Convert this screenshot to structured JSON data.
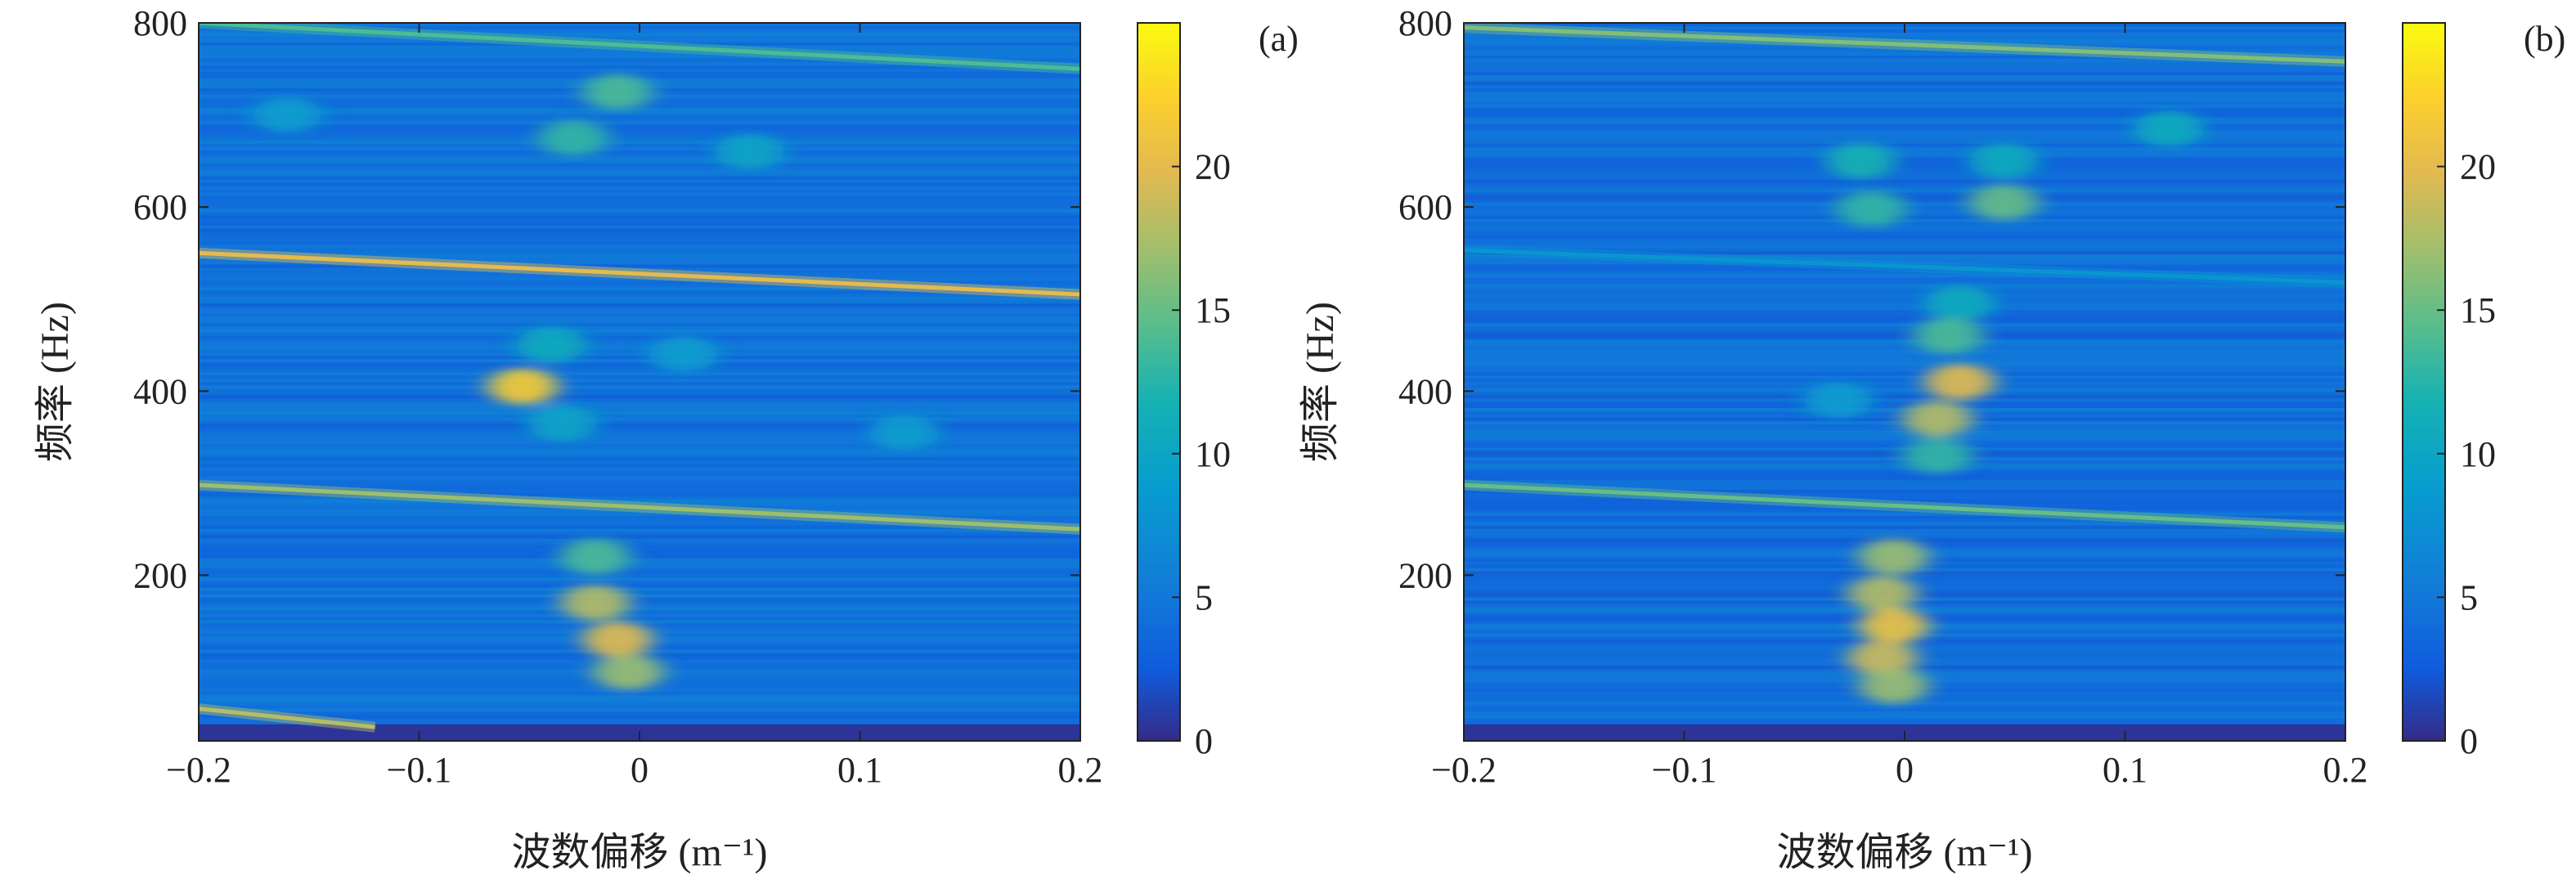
{
  "chart_data": [
    {
      "type": "heatmap",
      "panel_label": "(a)",
      "xlabel": "波数偏移 (m⁻¹)",
      "ylabel": "频率 (Hz)",
      "xlim": [
        -0.2,
        0.2
      ],
      "ylim": [
        20,
        800
      ],
      "xticks": [
        -0.2,
        -0.1,
        0,
        0.1,
        0.2
      ],
      "xtick_labels": [
        "−0.2",
        "−0.1",
        "0",
        "0.1",
        "0.2"
      ],
      "yticks": [
        200,
        400,
        600,
        800
      ],
      "ytick_labels": [
        "200",
        "400",
        "600",
        "800"
      ],
      "colorbar": {
        "min": 0,
        "max": 25,
        "ticks": [
          0,
          5,
          10,
          15,
          20
        ],
        "tick_labels": [
          "0",
          "5",
          "10",
          "15",
          "20"
        ]
      },
      "background_level": 4.5,
      "ridges": [
        {
          "from": [
            -0.2,
            550
          ],
          "to": [
            0.2,
            505
          ],
          "intensity": 20
        },
        {
          "from": [
            -0.2,
            298
          ],
          "to": [
            0.2,
            250
          ],
          "intensity": 17
        },
        {
          "from": [
            -0.2,
            800
          ],
          "to": [
            0.2,
            750
          ],
          "intensity": 14
        },
        {
          "from": [
            -0.2,
            55
          ],
          "to": [
            -0.12,
            35
          ],
          "intensity": 18
        }
      ],
      "hotspots": [
        {
          "x": -0.053,
          "y": 405,
          "intensity": 22
        },
        {
          "x": -0.04,
          "y": 450,
          "intensity": 11
        },
        {
          "x": -0.035,
          "y": 365,
          "intensity": 10
        },
        {
          "x": 0.02,
          "y": 440,
          "intensity": 9
        },
        {
          "x": -0.03,
          "y": 675,
          "intensity": 13
        },
        {
          "x": -0.01,
          "y": 725,
          "intensity": 14
        },
        {
          "x": 0.05,
          "y": 660,
          "intensity": 10
        },
        {
          "x": -0.16,
          "y": 700,
          "intensity": 9
        },
        {
          "x": -0.02,
          "y": 220,
          "intensity": 14
        },
        {
          "x": -0.02,
          "y": 170,
          "intensity": 18
        },
        {
          "x": -0.01,
          "y": 130,
          "intensity": 20
        },
        {
          "x": -0.005,
          "y": 95,
          "intensity": 17
        },
        {
          "x": 0.12,
          "y": 355,
          "intensity": 9
        }
      ]
    },
    {
      "type": "heatmap",
      "panel_label": "(b)",
      "xlabel": "波数偏移 (m⁻¹)",
      "ylabel": "频率 (Hz)",
      "xlim": [
        -0.2,
        0.2
      ],
      "ylim": [
        20,
        800
      ],
      "xticks": [
        -0.2,
        -0.1,
        0,
        0.1,
        0.2
      ],
      "xtick_labels": [
        "−0.2",
        "−0.1",
        "0",
        "0.1",
        "0.2"
      ],
      "yticks": [
        200,
        400,
        600,
        800
      ],
      "ytick_labels": [
        "200",
        "400",
        "600",
        "800"
      ],
      "colorbar": {
        "min": 0,
        "max": 25,
        "ticks": [
          0,
          5,
          10,
          15,
          20
        ],
        "tick_labels": [
          "0",
          "5",
          "10",
          "15",
          "20"
        ]
      },
      "background_level": 4.2,
      "ridges": [
        {
          "from": [
            -0.2,
            795
          ],
          "to": [
            0.2,
            758
          ],
          "intensity": 16
        },
        {
          "from": [
            -0.2,
            298
          ],
          "to": [
            0.2,
            252
          ],
          "intensity": 15
        },
        {
          "from": [
            -0.2,
            553
          ],
          "to": [
            0.2,
            518
          ],
          "intensity": 8
        }
      ],
      "hotspots": [
        {
          "x": -0.02,
          "y": 650,
          "intensity": 12
        },
        {
          "x": 0.045,
          "y": 650,
          "intensity": 11
        },
        {
          "x": -0.015,
          "y": 598,
          "intensity": 13
        },
        {
          "x": 0.045,
          "y": 605,
          "intensity": 15
        },
        {
          "x": 0.12,
          "y": 685,
          "intensity": 11
        },
        {
          "x": 0.025,
          "y": 495,
          "intensity": 11
        },
        {
          "x": 0.02,
          "y": 460,
          "intensity": 14
        },
        {
          "x": 0.025,
          "y": 410,
          "intensity": 20
        },
        {
          "x": 0.015,
          "y": 370,
          "intensity": 18
        },
        {
          "x": 0.015,
          "y": 330,
          "intensity": 13
        },
        {
          "x": -0.03,
          "y": 390,
          "intensity": 9
        },
        {
          "x": -0.005,
          "y": 220,
          "intensity": 17
        },
        {
          "x": -0.01,
          "y": 180,
          "intensity": 18
        },
        {
          "x": -0.005,
          "y": 145,
          "intensity": 21
        },
        {
          "x": -0.01,
          "y": 110,
          "intensity": 19
        },
        {
          "x": -0.005,
          "y": 80,
          "intensity": 17
        }
      ]
    }
  ]
}
